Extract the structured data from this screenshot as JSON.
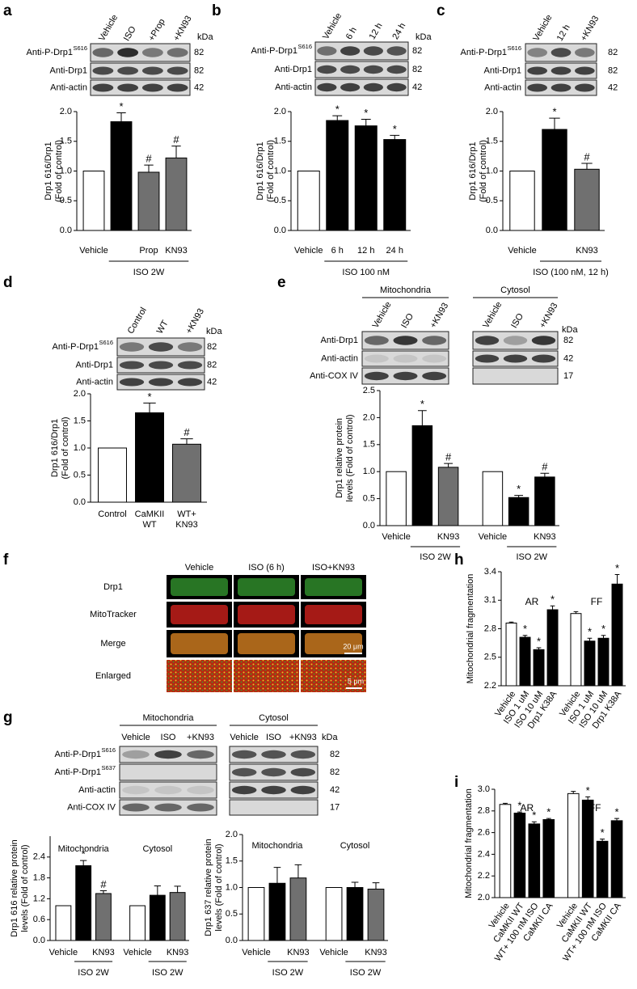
{
  "panel_labels": [
    "a",
    "b",
    "c",
    "d",
    "e",
    "f",
    "g",
    "h",
    "i"
  ],
  "blots": [
    {
      "lanes": [
        "Vehicle",
        "ISO",
        "+Prop",
        "+KN93"
      ],
      "kda": "kDa",
      "rows": [
        {
          "label": "Anti-P-Drp1",
          "sup": "S616",
          "mw": 82
        },
        {
          "label": "Anti-Drp1",
          "mw": 82
        },
        {
          "label": "Anti-actin",
          "mw": 42
        }
      ]
    },
    {
      "lanes": [
        "Vehicle",
        "6 h",
        "12 h",
        "24 h"
      ],
      "kda": "kDa",
      "rows": [
        {
          "label": "Anti-P-Drp1",
          "sup": "S616",
          "mw": 82
        },
        {
          "label": "Anti-Drp1",
          "mw": 82
        },
        {
          "label": "Anti-actin",
          "mw": 42
        }
      ]
    },
    {
      "lanes": [
        "Vehicle",
        "12 h",
        "+KN93"
      ],
      "rows": [
        {
          "label": "Anti-P-Drp1",
          "sup": "S616",
          "mw": 82
        },
        {
          "label": "Anti-Drp1",
          "mw": 82
        },
        {
          "label": "Anti-actin",
          "mw": 42
        }
      ]
    },
    {
      "lanes": [
        "Control",
        "WT",
        "+KN93"
      ],
      "kda": "kDa",
      "rows": [
        {
          "label": "Anti-P-Drp1",
          "sup": "S616",
          "mw": 82
        },
        {
          "label": "Anti-Drp1",
          "mw": 82
        },
        {
          "label": "Anti-actin",
          "mw": 42
        }
      ]
    },
    {
      "sections": [
        {
          "title": "Mitochondria",
          "lanes": [
            "Vehicle",
            "ISO",
            "+KN93"
          ]
        },
        {
          "title": "Cytosol",
          "lanes": [
            "Vehicle",
            "ISO",
            "+KN93"
          ]
        }
      ],
      "kda": "kDa",
      "rows": [
        {
          "label": "Anti-Drp1",
          "mw": 82
        },
        {
          "label": "Anti-actin",
          "mw": 42
        },
        {
          "label": "Anti-COX IV",
          "mw": 17
        }
      ]
    },
    {
      "sections": [
        {
          "title": "Mitochondria",
          "lanes": [
            "Vehicle",
            "ISO",
            "+KN93"
          ]
        },
        {
          "title": "Cytosol",
          "lanes": [
            "Vehicle",
            "ISO",
            "+KN93"
          ]
        }
      ],
      "kda": "kDa",
      "rows": [
        {
          "label": "Anti-P-Drp1",
          "sup": "S616",
          "mw": 82
        },
        {
          "label": "Anti-P-Drp1",
          "sup": "S637",
          "mw": 82
        },
        {
          "label": "Anti-actin",
          "mw": 42
        },
        {
          "label": "Anti-COX IV",
          "mw": 17
        }
      ]
    }
  ],
  "imaging": {
    "columns": [
      "Vehicle",
      "ISO (6 h)",
      "ISO+KN93"
    ],
    "rows": [
      "Drp1",
      "MitoTracker",
      "Merge",
      "Enlarged"
    ],
    "scale_bars": [
      "20 μm",
      "5 μm"
    ]
  },
  "chart_data": [
    {
      "type": "bar",
      "ylabel": [
        "Drp1 616/Drp1",
        "(Fold of control)"
      ],
      "categories": [
        "Vehicle",
        null,
        "Prop",
        "KN93"
      ],
      "values": [
        1.0,
        1.83,
        0.98,
        1.22
      ],
      "errors": [
        null,
        0.15,
        0.12,
        0.2
      ],
      "annotations": [
        null,
        "*",
        "#",
        "#"
      ],
      "colors": [
        "#ffffff",
        "#000000",
        "#707070",
        "#707070"
      ],
      "groups": [
        "ISO 2W"
      ],
      "ylim": [
        0,
        2.0
      ],
      "yticks": [
        {
          "value": 0,
          "label": "0.0"
        },
        0.5,
        {
          "value": 1.0,
          "label": "1.0"
        },
        1.5,
        {
          "value": 2.0,
          "label": "2.0"
        }
      ]
    },
    {
      "type": "bar",
      "ylabel": [
        "Drp1 616/Drp1",
        "(Fold of control)"
      ],
      "categories": [
        "Vehicle",
        "6 h",
        "12 h",
        "24 h"
      ],
      "values": [
        1.0,
        1.85,
        1.76,
        1.53
      ],
      "errors": [
        null,
        0.08,
        0.11,
        0.07
      ],
      "annotations": [
        null,
        "*",
        "*",
        "*"
      ],
      "colors": [
        "#ffffff",
        "#000000",
        "#000000",
        "#000000"
      ],
      "groups": [
        "ISO 100 nM"
      ],
      "ylim": [
        0,
        2.0
      ],
      "yticks": [
        {
          "value": 0,
          "label": "0.0"
        },
        0.5,
        {
          "value": 1.0,
          "label": "1.0"
        },
        1.5,
        {
          "value": 2.0,
          "label": "2.0"
        }
      ]
    },
    {
      "type": "bar",
      "ylabel": [
        "Drp1 616/Drp1",
        "(Fold of control)"
      ],
      "categories": [
        "Vehicle",
        null,
        "KN93"
      ],
      "values": [
        1.0,
        1.7,
        1.03
      ],
      "errors": [
        null,
        0.19,
        0.1
      ],
      "annotations": [
        null,
        "*",
        "#"
      ],
      "colors": [
        "#ffffff",
        "#000000",
        "#707070"
      ],
      "groups": [
        "ISO (100 nM, 12 h)"
      ],
      "ylim": [
        0,
        2.0
      ],
      "yticks": [
        {
          "value": 0,
          "label": "0.0"
        },
        0.5,
        {
          "value": 1.0,
          "label": "1.0"
        },
        1.5,
        {
          "value": 2.0,
          "label": "2.0"
        }
      ]
    },
    {
      "type": "bar",
      "ylabel": [
        "Drp1 616/Drp1",
        "(Fold of control)"
      ],
      "categories": [
        "Control",
        [
          "CaMKII",
          "WT"
        ],
        [
          "WT+",
          "KN93"
        ]
      ],
      "values": [
        1.0,
        1.65,
        1.07
      ],
      "errors": [
        null,
        0.18,
        0.1
      ],
      "annotations": [
        null,
        "*",
        "#"
      ],
      "colors": [
        "#ffffff",
        "#000000",
        "#707070"
      ],
      "ylim": [
        0,
        2.0
      ],
      "yticks": [
        {
          "value": 0,
          "label": "0.0"
        },
        0.5,
        {
          "value": 1.0,
          "label": "1.0"
        },
        1.5,
        {
          "value": 2.0,
          "label": "2.0"
        }
      ]
    },
    {
      "type": "bar",
      "ylabel": [
        "Drp1 relative protein",
        "levels (Fold of control)"
      ],
      "categories": [
        "Vehicle",
        null,
        "KN93",
        "Vehicle",
        null,
        "KN93"
      ],
      "values": [
        1.0,
        1.85,
        1.08,
        1.0,
        0.52,
        0.9
      ],
      "errors": [
        null,
        0.28,
        0.07,
        null,
        0.04,
        0.07
      ],
      "annotations": [
        null,
        "*",
        "#",
        null,
        "*",
        "#"
      ],
      "colors": [
        "#ffffff",
        "#000000",
        "#707070",
        "#ffffff",
        "#000000",
        "#000000"
      ],
      "groups": [
        "ISO 2W",
        "ISO 2W"
      ],
      "ylim": [
        0,
        2.5
      ],
      "yticks": [
        {
          "value": 0,
          "label": "0.0"
        },
        0.5,
        {
          "value": 1.0,
          "label": "1.0"
        },
        1.5,
        {
          "value": 2.0,
          "label": "2.0"
        },
        2.5
      ]
    },
    {
      "type": "bar",
      "ylabel": [
        "Drp1 616 relative protein",
        "levels (Fold of control)"
      ],
      "sections": [
        "Mitochondria",
        "Cytosol"
      ],
      "categories": [
        "Vehicle",
        null,
        "KN93",
        "Vehicle",
        null,
        "KN93"
      ],
      "values": [
        1.0,
        2.15,
        1.35,
        1.0,
        1.3,
        1.38
      ],
      "errors": [
        null,
        0.15,
        0.08,
        null,
        0.27,
        0.18
      ],
      "annotations": [
        null,
        "*",
        "#",
        null,
        null,
        null
      ],
      "colors": [
        "#ffffff",
        "#000000",
        "#707070",
        "#ffffff",
        "#000000",
        "#707070"
      ],
      "groups": [
        "ISO 2W",
        "ISO 2W"
      ],
      "ylim": [
        0,
        3.0
      ],
      "yticks": [
        {
          "value": 0,
          "label": "0.0"
        },
        0.6,
        1.2,
        1.8,
        2.4
      ]
    },
    {
      "type": "bar",
      "ylabel": [
        "Drp1 637 relative protein",
        "levels (Fold of control)"
      ],
      "sections": [
        "Mitochondria",
        "Cytosol"
      ],
      "categories": [
        "Vehicle",
        null,
        "KN93",
        "Vehicle",
        null,
        "KN93"
      ],
      "values": [
        1.0,
        1.08,
        1.18,
        1.0,
        1.0,
        0.97
      ],
      "errors": [
        null,
        0.3,
        0.25,
        null,
        0.1,
        0.12
      ],
      "annotations": [
        null,
        null,
        null,
        null,
        null,
        null
      ],
      "colors": [
        "#ffffff",
        "#000000",
        "#707070",
        "#ffffff",
        "#000000",
        "#707070"
      ],
      "groups": [
        "ISO 2W",
        "ISO 2W"
      ],
      "ylim": [
        0,
        2.0
      ],
      "yticks": [
        {
          "value": 0,
          "label": "0.0"
        },
        0.5,
        {
          "value": 1.0,
          "label": "1.0"
        },
        1.5,
        {
          "value": 2.0,
          "label": "2.0"
        }
      ]
    },
    {
      "type": "bar",
      "ylabel": [
        "Mitochondrial fragmentation"
      ],
      "sections": [
        "AR",
        "FF"
      ],
      "categories": [
        "Vehicle",
        "ISO 1 uM",
        "ISO 10 uM",
        "Drp1 K38A",
        "Vehicle",
        "ISO 1 uM",
        "ISO 10 uM",
        "Drp1 K38A"
      ],
      "values": [
        2.86,
        2.71,
        2.58,
        3.0,
        2.96,
        2.67,
        2.7,
        3.27
      ],
      "errors": [
        0.01,
        0.02,
        0.02,
        0.04,
        0.02,
        0.03,
        0.03,
        0.1
      ],
      "annotations": [
        null,
        "*",
        "*",
        "*",
        null,
        "*",
        "*",
        "*"
      ],
      "colors": [
        "#ffffff",
        "#000000",
        "#000000",
        "#000000",
        "#ffffff",
        "#000000",
        "#000000",
        "#000000"
      ],
      "ylim": [
        2.2,
        3.4
      ],
      "yticks": [
        2.2,
        2.5,
        2.8,
        3.1,
        3.4
      ]
    },
    {
      "type": "bar",
      "ylabel": [
        "Mitochondrial fragmentation"
      ],
      "sections": [
        "AR",
        "FF"
      ],
      "categories": [
        "Vehicle",
        "CaMKII WT",
        "WT+ 100 nM ISO",
        "CaMKII CA",
        "Vehicle",
        "CaMKII WT",
        "WT+ 100 nM ISO",
        "CaMKII CA"
      ],
      "values": [
        2.86,
        2.78,
        2.68,
        2.72,
        2.96,
        2.9,
        2.52,
        2.71
      ],
      "errors": [
        0.01,
        0.01,
        0.02,
        0.01,
        0.02,
        0.03,
        0.02,
        0.02
      ],
      "annotations": [
        null,
        "*",
        "*",
        "*",
        null,
        "*",
        "*",
        "*"
      ],
      "colors": [
        "#ffffff",
        "#000000",
        "#000000",
        "#000000",
        "#ffffff",
        "#000000",
        "#000000",
        "#000000"
      ],
      "ylim": [
        2.0,
        3.0
      ],
      "yticks": [
        {
          "value": 2.0,
          "label": "2.0"
        },
        2.2,
        2.4,
        2.6,
        2.8,
        {
          "value": 3.0,
          "label": "3.0"
        }
      ]
    }
  ]
}
